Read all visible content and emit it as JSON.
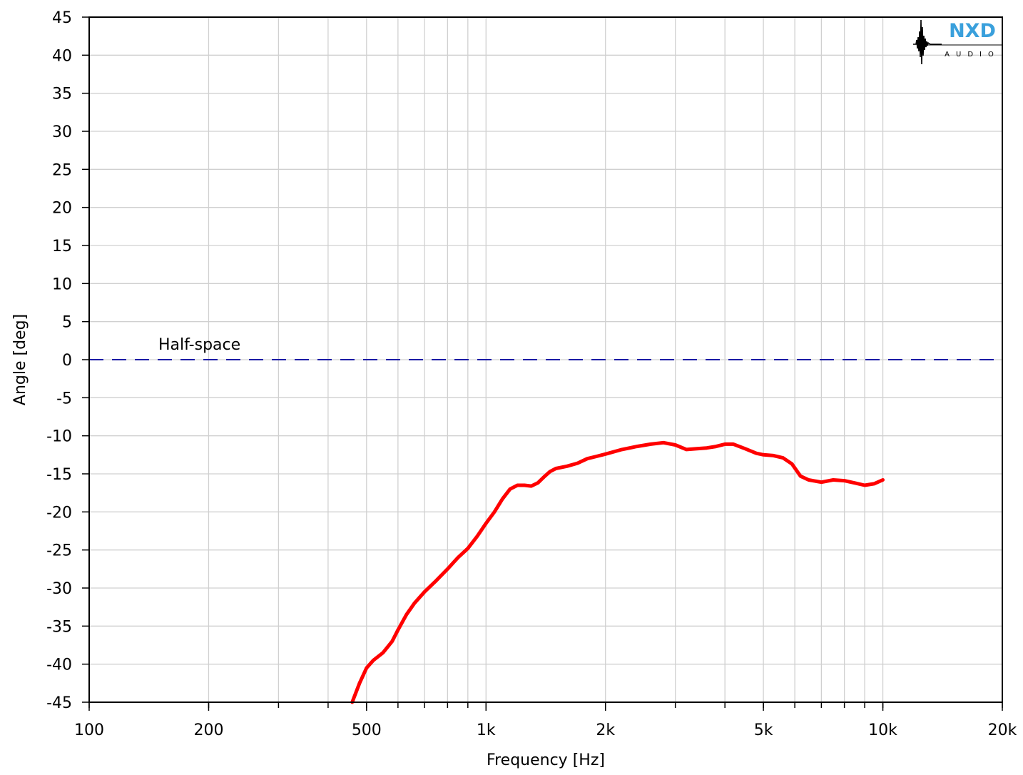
{
  "chart_data": {
    "type": "line",
    "title": "",
    "xlabel": "Frequency [Hz]",
    "ylabel": "Angle [deg]",
    "xscale": "log",
    "xlim": [
      100,
      20000
    ],
    "ylim": [
      -45,
      45
    ],
    "grid": true,
    "xticks": [
      {
        "value": 100,
        "label": "100"
      },
      {
        "value": 200,
        "label": "200"
      },
      {
        "value": 500,
        "label": "500"
      },
      {
        "value": 1000,
        "label": "1k"
      },
      {
        "value": 2000,
        "label": "2k"
      },
      {
        "value": 5000,
        "label": "5k"
      },
      {
        "value": 10000,
        "label": "10k"
      },
      {
        "value": 20000,
        "label": "20k"
      }
    ],
    "yticks": [
      45,
      40,
      35,
      30,
      25,
      20,
      15,
      10,
      5,
      0,
      -5,
      -10,
      -15,
      -20,
      -25,
      -30,
      -35,
      -40,
      -45
    ],
    "reference": {
      "label": "Half-space",
      "y": 0,
      "color": "#1a1aa6",
      "style": "dashed"
    },
    "series": [
      {
        "color": "#ff0000",
        "x": [
          460,
          480,
          500,
          520,
          550,
          580,
          600,
          630,
          660,
          700,
          750,
          800,
          850,
          900,
          950,
          1000,
          1050,
          1100,
          1150,
          1200,
          1250,
          1300,
          1350,
          1400,
          1450,
          1500,
          1600,
          1700,
          1800,
          1900,
          2000,
          2200,
          2400,
          2600,
          2800,
          3000,
          3200,
          3400,
          3600,
          3800,
          4000,
          4200,
          4500,
          4800,
          5000,
          5300,
          5600,
          5900,
          6200,
          6500,
          7000,
          7500,
          8000,
          8500,
          9000,
          9500,
          10000
        ],
        "values": [
          -45,
          -42.5,
          -40.5,
          -39.5,
          -38.5,
          -37,
          -35.5,
          -33.5,
          -32,
          -30.5,
          -29,
          -27.5,
          -26,
          -24.8,
          -23.2,
          -21.5,
          -20,
          -18.3,
          -17,
          -16.5,
          -16.5,
          -16.6,
          -16.2,
          -15.4,
          -14.7,
          -14.3,
          -14,
          -13.6,
          -13,
          -12.7,
          -12.4,
          -11.8,
          -11.4,
          -11.1,
          -10.9,
          -11.2,
          -11.8,
          -11.7,
          -11.6,
          -11.4,
          -11.1,
          -11.1,
          -11.7,
          -12.3,
          -12.5,
          -12.6,
          -12.9,
          -13.7,
          -15.3,
          -15.8,
          -16.1,
          -15.8,
          -15.9,
          -16.2,
          -16.5,
          -16.3,
          -15.8
        ]
      }
    ]
  },
  "logo": {
    "text": "NXD",
    "subtext": "AUDIO"
  }
}
